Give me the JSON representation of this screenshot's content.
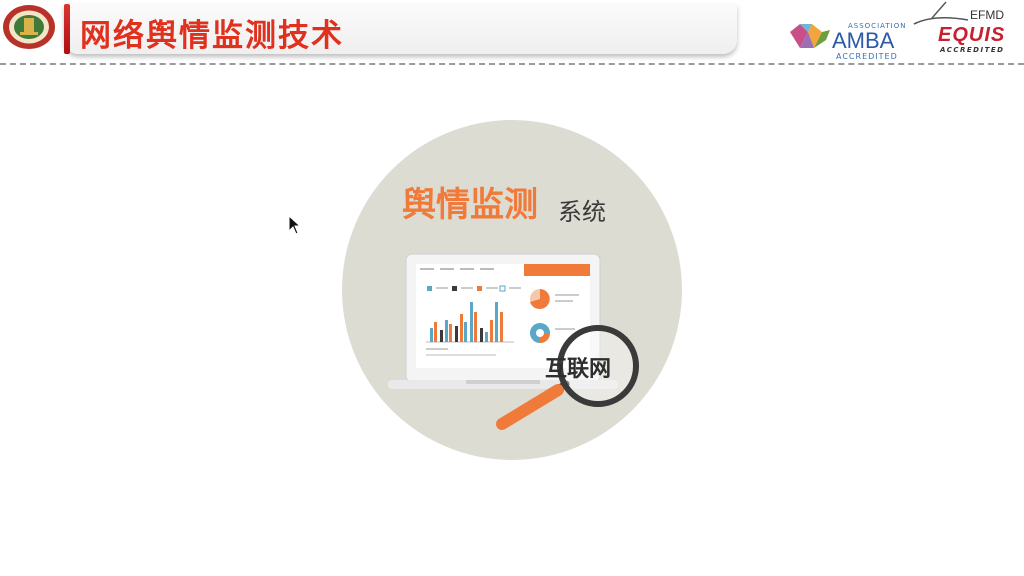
{
  "header": {
    "title": "网络舆情监测技术",
    "accent": "#e0301e"
  },
  "logos": {
    "university_seal": "university-seal-logo",
    "amba": {
      "association": "ASSOCIATION",
      "name": "AMBA",
      "accredited": "ACCREDITED"
    },
    "equis": {
      "efmd": "EFMD",
      "name": "EQUIS",
      "accredited": "ACCREDITED"
    }
  },
  "illustration": {
    "headline_orange": "舆情监测",
    "headline_dark": "系统",
    "magnifier_text": "互联网",
    "colors": {
      "orange": "#f07a3a",
      "circle": "#dddcd3",
      "dark": "#3a3a3a",
      "blue": "#5aa7c7"
    }
  }
}
